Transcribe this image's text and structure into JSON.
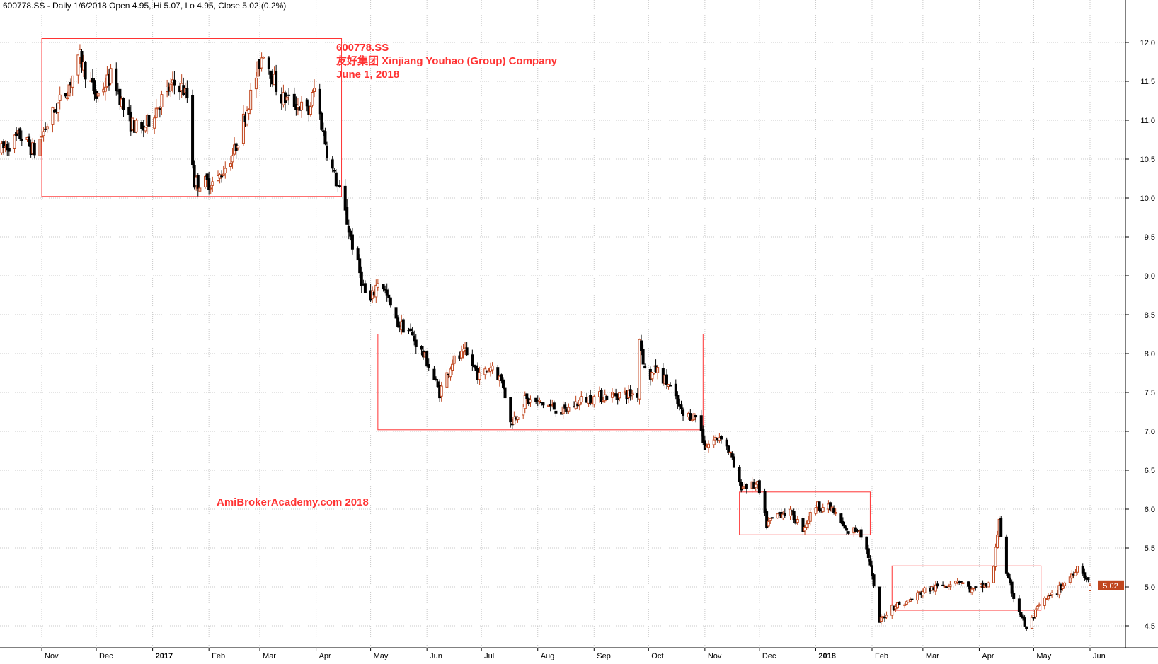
{
  "header": {
    "text": "600778.SS - Daily 1/6/2018 Open 4.95, Hi 5.07, Lo 4.95, Close 5.02 (0.2%)"
  },
  "annotation": {
    "line1": "600778.SS",
    "line2": "友好集团 Xinjiang Youhao (Group) Company",
    "line3": "June 1, 2018",
    "watermark": "AmiBrokerAcademy.com  2018"
  },
  "last_price_label": "5.02",
  "colors": {
    "up": "#c0461e",
    "down": "#000000",
    "grid": "#c8c8c8",
    "annotation": "#ff3333",
    "price_tag": "#c0461e"
  },
  "chart_data": {
    "type": "candlestick",
    "ylim": [
      4.3,
      12.3
    ],
    "y_ticks": [
      "4.5",
      "5.0",
      "5.5",
      "6.0",
      "6.5",
      "7.0",
      "7.5",
      "8.0",
      "8.5",
      "9.0",
      "9.5",
      "10.0",
      "10.5",
      "11.0",
      "11.5",
      "12.0"
    ],
    "x_ticks": [
      {
        "label": "Nov",
        "date": "2016-11-01"
      },
      {
        "label": "Dec",
        "date": "2016-12-01"
      },
      {
        "label": "2017",
        "date": "2017-01-01",
        "bold": true
      },
      {
        "label": "Feb",
        "date": "2017-02-01"
      },
      {
        "label": "Mar",
        "date": "2017-03-01"
      },
      {
        "label": "Apr",
        "date": "2017-04-01"
      },
      {
        "label": "May",
        "date": "2017-05-01"
      },
      {
        "label": "Jun",
        "date": "2017-06-01"
      },
      {
        "label": "Jul",
        "date": "2017-07-01"
      },
      {
        "label": "Aug",
        "date": "2017-08-01"
      },
      {
        "label": "Sep",
        "date": "2017-09-01"
      },
      {
        "label": "Oct",
        "date": "2017-10-01"
      },
      {
        "label": "Nov",
        "date": "2017-11-01"
      },
      {
        "label": "Dec",
        "date": "2017-12-01"
      },
      {
        "label": "2018",
        "date": "2018-01-01",
        "bold": true
      },
      {
        "label": "Feb",
        "date": "2018-02-01"
      },
      {
        "label": "Mar",
        "date": "2018-03-01"
      },
      {
        "label": "Apr",
        "date": "2018-04-01"
      },
      {
        "label": "May",
        "date": "2018-05-01"
      },
      {
        "label": "Jun",
        "date": "2018-06-01"
      }
    ],
    "date_range": [
      "2016-10-09",
      "2018-06-01"
    ],
    "close_path": [
      [
        "2016-10-09",
        10.6
      ],
      [
        "2016-10-20",
        10.8
      ],
      [
        "2016-10-28",
        10.6
      ],
      [
        "2016-11-05",
        11.0
      ],
      [
        "2016-11-15",
        11.4
      ],
      [
        "2016-11-22",
        11.8
      ],
      [
        "2016-12-01",
        11.3
      ],
      [
        "2016-12-10",
        11.6
      ],
      [
        "2016-12-18",
        11.0
      ],
      [
        "2016-12-26",
        10.85
      ],
      [
        "2017-01-08",
        11.35
      ],
      [
        "2017-01-15",
        11.5
      ],
      [
        "2017-01-20",
        11.3
      ],
      [
        "2017-01-24",
        10.2
      ],
      [
        "2017-02-05",
        10.2
      ],
      [
        "2017-02-15",
        10.6
      ],
      [
        "2017-02-25",
        11.4
      ],
      [
        "2017-03-03",
        11.9
      ],
      [
        "2017-03-12",
        11.3
      ],
      [
        "2017-03-22",
        11.2
      ],
      [
        "2017-03-28",
        11.1
      ],
      [
        "2017-03-31",
        11.4
      ],
      [
        "2017-04-08",
        10.5
      ],
      [
        "2017-04-15",
        10.0
      ],
      [
        "2017-04-22",
        9.3
      ],
      [
        "2017-04-30",
        8.6
      ],
      [
        "2017-05-06",
        9.0
      ],
      [
        "2017-05-15",
        8.4
      ],
      [
        "2017-05-22",
        8.3
      ],
      [
        "2017-06-01",
        7.9
      ],
      [
        "2017-06-08",
        7.5
      ],
      [
        "2017-06-15",
        7.9
      ],
      [
        "2017-06-22",
        8.0
      ],
      [
        "2017-06-30",
        7.7
      ],
      [
        "2017-07-07",
        7.85
      ],
      [
        "2017-07-13",
        7.6
      ],
      [
        "2017-07-17",
        7.1
      ],
      [
        "2017-07-25",
        7.4
      ],
      [
        "2017-08-05",
        7.35
      ],
      [
        "2017-08-15",
        7.25
      ],
      [
        "2017-08-25",
        7.4
      ],
      [
        "2017-09-05",
        7.45
      ],
      [
        "2017-09-15",
        7.48
      ],
      [
        "2017-09-25",
        7.48
      ],
      [
        "2017-09-26",
        8.2
      ],
      [
        "2017-09-30",
        7.65
      ],
      [
        "2017-10-05",
        7.8
      ],
      [
        "2017-10-12",
        7.6
      ],
      [
        "2017-10-20",
        7.2
      ],
      [
        "2017-10-28",
        7.2
      ],
      [
        "2017-11-01",
        6.8
      ],
      [
        "2017-11-10",
        6.95
      ],
      [
        "2017-11-15",
        6.7
      ],
      [
        "2017-11-20",
        6.3
      ],
      [
        "2017-11-30",
        6.3
      ],
      [
        "2017-12-05",
        5.8
      ],
      [
        "2017-12-12",
        5.95
      ],
      [
        "2017-12-18",
        5.95
      ],
      [
        "2017-12-25",
        5.75
      ],
      [
        "2018-01-01",
        6.05
      ],
      [
        "2018-01-10",
        6.0
      ],
      [
        "2018-01-18",
        5.7
      ],
      [
        "2018-01-25",
        5.75
      ],
      [
        "2018-01-30",
        5.4
      ],
      [
        "2018-02-05",
        4.55
      ],
      [
        "2018-02-12",
        4.75
      ],
      [
        "2018-02-20",
        4.8
      ],
      [
        "2018-03-01",
        4.95
      ],
      [
        "2018-03-10",
        5.0
      ],
      [
        "2018-03-20",
        5.1
      ],
      [
        "2018-03-28",
        4.95
      ],
      [
        "2018-04-08",
        5.05
      ],
      [
        "2018-04-12",
        5.9
      ],
      [
        "2018-04-15",
        5.2
      ],
      [
        "2018-04-22",
        4.75
      ],
      [
        "2018-04-27",
        4.45
      ],
      [
        "2018-05-05",
        4.8
      ],
      [
        "2018-05-12",
        4.9
      ],
      [
        "2018-05-20",
        5.1
      ],
      [
        "2018-05-26",
        5.3
      ],
      [
        "2018-05-30",
        5.1
      ],
      [
        "2018-06-01",
        5.02
      ]
    ],
    "boxes": [
      {
        "from": "2016-11-01",
        "to": "2017-04-15",
        "low": 10.02,
        "high": 12.05
      },
      {
        "from": "2017-05-05",
        "to": "2017-10-31",
        "low": 7.02,
        "high": 8.25
      },
      {
        "from": "2017-11-20",
        "to": "2018-01-31",
        "low": 5.67,
        "high": 6.22
      },
      {
        "from": "2018-02-12",
        "to": "2018-05-05",
        "low": 4.7,
        "high": 5.27
      }
    ]
  }
}
